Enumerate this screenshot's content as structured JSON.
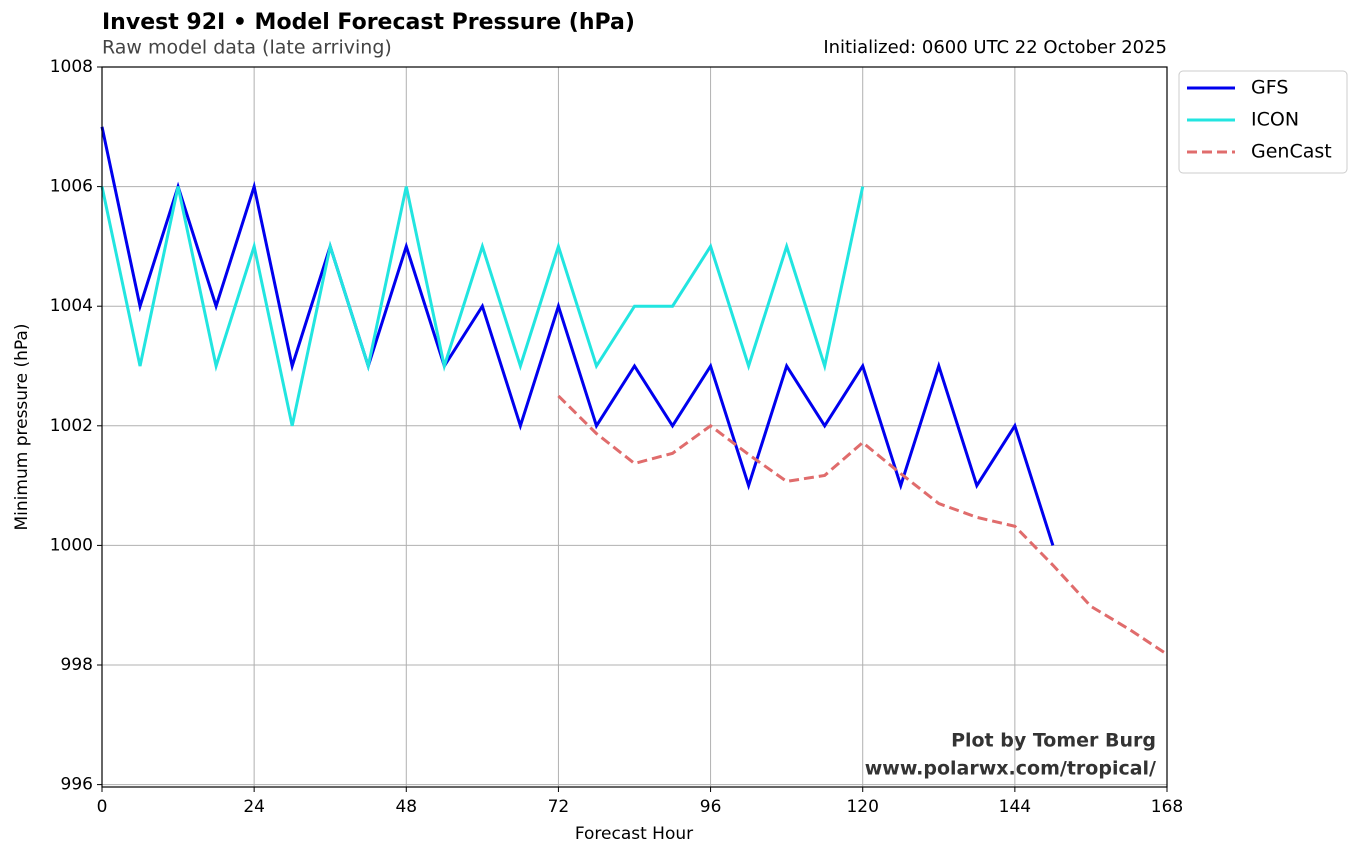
{
  "chart_data": {
    "type": "line",
    "title": "Invest 92I • Model Forecast Pressure (hPa)",
    "subtitle": "Raw model data (late arriving)",
    "annotations": [
      "Initialized: 0600 UTC 22 October 2025",
      "Plot by Tomer Burg",
      "www.polarwx.com/tropical/"
    ],
    "x_label": "Forecast Hour",
    "y_label": "Minimum pressure (hPa)",
    "x": [
      0,
      6,
      12,
      18,
      24,
      30,
      36,
      42,
      48,
      54,
      60,
      66,
      72,
      78,
      84,
      90,
      96,
      102,
      108,
      114,
      120,
      126,
      132,
      138,
      144,
      150,
      156,
      162,
      168
    ],
    "series": [
      {
        "name": "GFS",
        "color": "#0000ee",
        "dash": false,
        "values": [
          1007,
          1004,
          1006,
          1004,
          1006,
          1003,
          1005,
          1003,
          1005,
          1003,
          1004,
          1002,
          1004,
          1002,
          1003,
          1002,
          1003,
          1001,
          1003,
          1002,
          1003,
          1001,
          1003,
          1001,
          1002,
          1000,
          null,
          null,
          null
        ]
      },
      {
        "name": "ICON",
        "color": "#22e5e0",
        "dash": false,
        "values": [
          1006,
          1003,
          1006,
          1003,
          1005,
          1002,
          1005,
          1003,
          1006,
          1003,
          1005,
          1003,
          1005,
          1003,
          1004,
          1004,
          1005,
          1003,
          1005,
          1003,
          1006,
          null,
          null,
          null,
          null,
          null,
          null,
          null,
          null
        ]
      },
      {
        "name": "GenCast",
        "color": "#e06c6c",
        "dash": true,
        "values": [
          null,
          null,
          null,
          null,
          null,
          null,
          null,
          null,
          null,
          null,
          null,
          null,
          1002.5,
          1001.87,
          1001.37,
          1001.54,
          1002.0,
          1001.52,
          1001.07,
          1001.17,
          1001.72,
          1001.2,
          1000.7,
          1000.47,
          1000.32,
          999.67,
          998.98,
          998.6,
          998.18
        ]
      }
    ],
    "xlim": [
      0,
      168
    ],
    "xticks": [
      0,
      24,
      48,
      72,
      96,
      120,
      144,
      168
    ],
    "ylim": [
      995.96,
      1008
    ],
    "yticks": [
      996,
      998,
      1000,
      1002,
      1004,
      1006,
      1008
    ],
    "grid": true,
    "legend": "outside-upper-right"
  }
}
